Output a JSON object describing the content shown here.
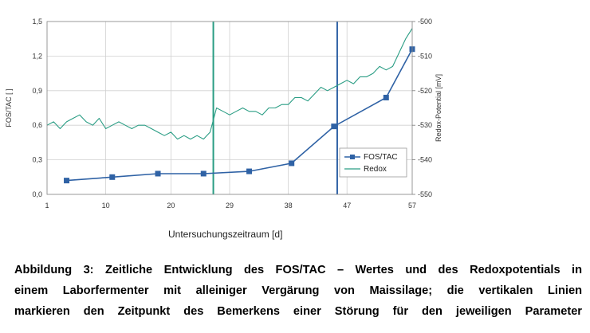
{
  "chart_data": {
    "type": "line",
    "xlabel": "Untersuchungszeitraum [d]",
    "ylabel": "FOS/TAC [ ]",
    "y2label": "Redox-Potential [mV]",
    "xlim": [
      1,
      57
    ],
    "ylim": [
      0,
      1.5
    ],
    "y2lim": [
      -550,
      -500
    ],
    "x_ticks": [
      1,
      10,
      20,
      29,
      38,
      47,
      57
    ],
    "y_ticks": [
      "0,0",
      "0,3",
      "0,6",
      "0,9",
      "1,2",
      "1,5"
    ],
    "y_tick_values": [
      0,
      0.3,
      0.6,
      0.9,
      1.2,
      1.5
    ],
    "y2_ticks": [
      "-500",
      "-510",
      "-520",
      "-530",
      "-540",
      "-550"
    ],
    "y2_tick_values": [
      -500,
      -510,
      -520,
      -530,
      -540,
      -550
    ],
    "grid": true,
    "legend_position": "bottom-right",
    "vertical_markers": [
      26.5,
      45.5
    ],
    "series": [
      {
        "name": "FOS/TAC",
        "axis": "left",
        "color": "#2f62a5",
        "marker": "square",
        "x": [
          4,
          11,
          18,
          25,
          32,
          38.5,
          45,
          53,
          57
        ],
        "values": [
          0.12,
          0.15,
          0.18,
          0.18,
          0.2,
          0.27,
          0.59,
          0.84,
          1.26
        ]
      },
      {
        "name": "Redox",
        "axis": "right",
        "color": "#2a9d84",
        "marker": "none",
        "x": [
          1,
          2,
          3,
          4,
          5,
          6,
          7,
          8,
          9,
          10,
          11,
          12,
          13,
          14,
          15,
          16,
          17,
          18,
          19,
          20,
          21,
          22,
          23,
          24,
          25,
          26,
          27,
          28,
          29,
          30,
          31,
          32,
          33,
          34,
          35,
          36,
          37,
          38,
          39,
          40,
          41,
          42,
          43,
          44,
          45,
          46,
          47,
          48,
          49,
          50,
          51,
          52,
          53,
          54,
          55,
          56,
          57
        ],
        "values": [
          -530,
          -529,
          -531,
          -529,
          -528,
          -527,
          -529,
          -530,
          -528,
          -531,
          -530,
          -529,
          -530,
          -531,
          -530,
          -530,
          -531,
          -532,
          -533,
          -532,
          -534,
          -533,
          -534,
          -533,
          -534,
          -532,
          -525,
          -526,
          -527,
          -526,
          -525,
          -526,
          -526,
          -527,
          -525,
          -525,
          -524,
          -524,
          -522,
          -522,
          -523,
          -521,
          -519,
          -520,
          -519,
          -518,
          -517,
          -518,
          -516,
          -516,
          -515,
          -513,
          -514,
          -513,
          -509,
          -505,
          -502
        ]
      }
    ]
  },
  "caption": {
    "line1": "Abbildung 3: Zeitliche Entwicklung des FOS/TAC – Wertes und des Redoxpotentials in",
    "line2": "einem Laborfermenter mit alleiniger Vergärung von Maissilage; die vertikalen Linien",
    "line3": "markieren den Zeitpunkt des Bemerkens einer Störung für den jeweiligen Parameter"
  }
}
